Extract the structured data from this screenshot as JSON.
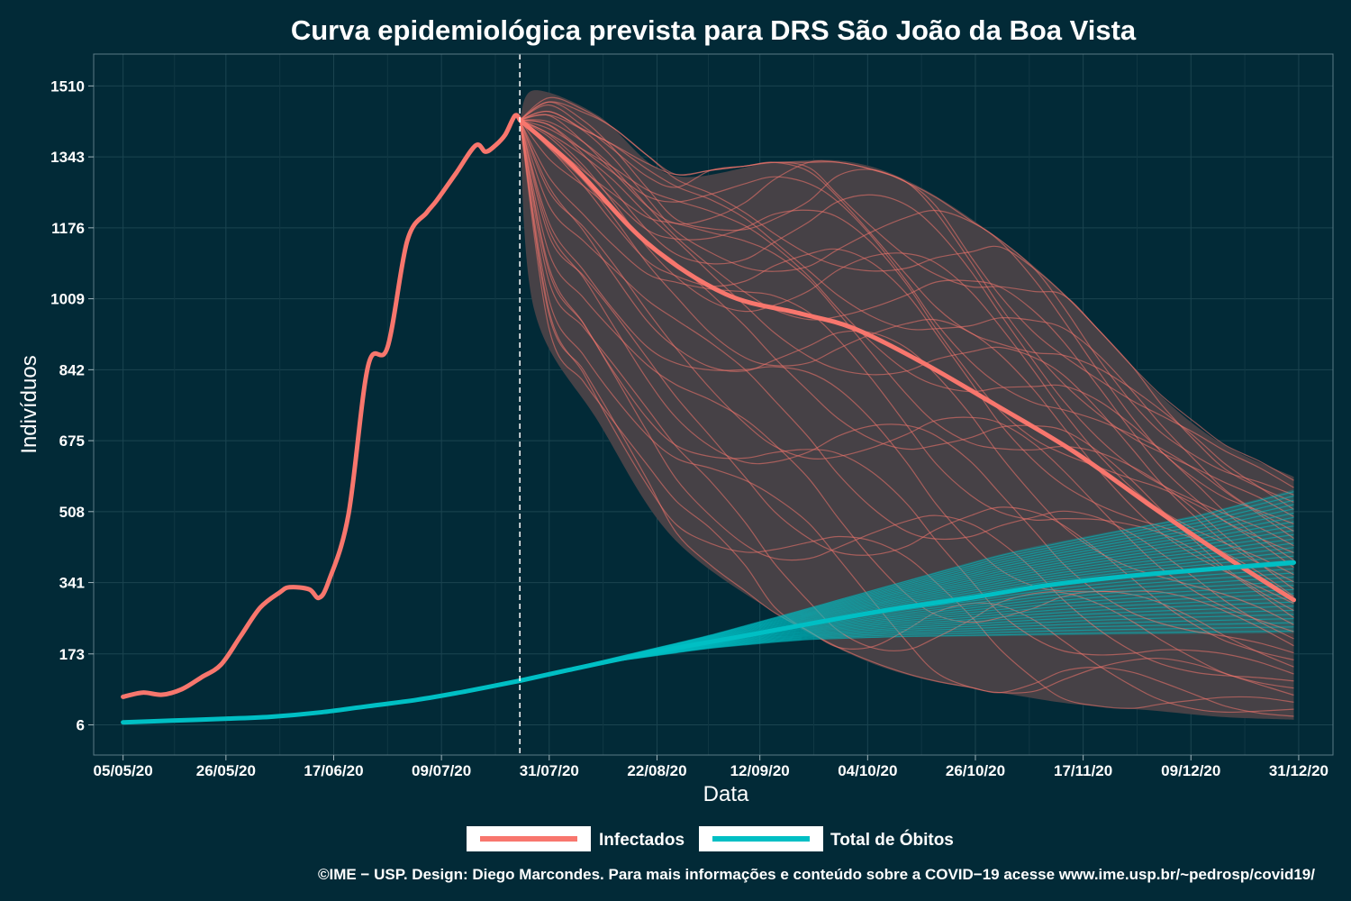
{
  "chart_data": {
    "type": "line",
    "title": "Curva epidemiológica prevista para DRS São João da Boa Vista",
    "xlabel": "Data",
    "ylabel": "Indivíduos",
    "x_ticks": [
      "05/05/20",
      "26/05/20",
      "17/06/20",
      "09/07/20",
      "31/07/20",
      "22/08/20",
      "12/09/20",
      "04/10/20",
      "26/10/20",
      "17/11/20",
      "09/12/20",
      "31/12/20"
    ],
    "y_ticks": [
      "6",
      "173",
      "341",
      "508",
      "675",
      "842",
      "1009",
      "1176",
      "1343",
      "1510"
    ],
    "xlim": [
      "2020-04-29",
      "2021-01-07"
    ],
    "ylim": [
      -65,
      1585
    ],
    "forecast_start": "2020-07-25",
    "legend": {
      "position": "bottom",
      "items": [
        "Infectados",
        "Total de Óbitos"
      ]
    },
    "colors": {
      "infectados": "#f8766d",
      "obitos": "#00bfc4",
      "band": "#464146",
      "background": "#022a37"
    },
    "series": [
      {
        "name": "Infectados",
        "x": [
          "2020-05-05",
          "2020-05-09",
          "2020-05-13",
          "2020-05-17",
          "2020-05-21",
          "2020-05-25",
          "2020-05-29",
          "2020-06-02",
          "2020-06-06",
          "2020-06-08",
          "2020-06-12",
          "2020-06-14",
          "2020-06-16",
          "2020-06-20",
          "2020-06-24",
          "2020-06-28",
          "2020-07-02",
          "2020-07-06",
          "2020-07-08",
          "2020-07-12",
          "2020-07-16",
          "2020-07-18",
          "2020-07-20",
          "2020-07-22",
          "2020-07-24",
          "2020-07-25"
        ],
        "y": [
          72,
          82,
          77,
          90,
          118,
          148,
          215,
          282,
          318,
          330,
          325,
          305,
          345,
          500,
          850,
          895,
          1145,
          1212,
          1240,
          1305,
          1370,
          1355,
          1370,
          1395,
          1440,
          1430
        ]
      },
      {
        "name": "Total de Óbitos",
        "x": [
          "2020-05-05",
          "2020-05-15",
          "2020-05-25",
          "2020-06-04",
          "2020-06-14",
          "2020-06-24",
          "2020-07-04",
          "2020-07-14",
          "2020-07-25"
        ],
        "y": [
          12,
          16,
          20,
          25,
          35,
          50,
          65,
          85,
          110
        ]
      },
      {
        "name": "Infectados (previsão)",
        "x": [
          "2020-07-25",
          "2020-08-05",
          "2020-08-20",
          "2020-09-05",
          "2020-09-20",
          "2020-10-01",
          "2020-10-15",
          "2020-10-30",
          "2020-11-15",
          "2020-12-01",
          "2020-12-15",
          "2020-12-30"
        ],
        "y": [
          1430,
          1320,
          1140,
          1020,
          975,
          940,
          860,
          760,
          650,
          520,
          410,
          300
        ]
      },
      {
        "name": "Total de Óbitos (previsão)",
        "x": [
          "2020-07-25",
          "2020-08-10",
          "2020-08-25",
          "2020-09-10",
          "2020-09-25",
          "2020-10-10",
          "2020-10-25",
          "2020-11-10",
          "2020-11-25",
          "2020-12-10",
          "2020-12-30"
        ],
        "y": [
          110,
          150,
          185,
          218,
          250,
          280,
          305,
          335,
          355,
          370,
          388
        ]
      }
    ],
    "band_infectados": {
      "x": [
        "2020-07-25",
        "2020-07-28",
        "2020-08-10",
        "2020-08-25",
        "2020-09-15",
        "2020-10-01",
        "2020-10-15",
        "2020-11-01",
        "2020-11-15",
        "2020-12-01",
        "2020-12-15",
        "2020-12-30"
      ],
      "upper": [
        1430,
        1500,
        1440,
        1300,
        1330,
        1330,
        1270,
        1140,
        1000,
        800,
        670,
        590
      ],
      "lower": [
        1430,
        980,
        720,
        450,
        270,
        170,
        115,
        80,
        55,
        40,
        25,
        18
      ]
    },
    "band_obitos": {
      "x": [
        "2020-07-25",
        "2020-08-10",
        "2020-09-01",
        "2020-09-20",
        "2020-10-10",
        "2020-11-01",
        "2020-11-20",
        "2020-12-10",
        "2020-12-30"
      ],
      "upper": [
        110,
        155,
        215,
        275,
        340,
        410,
        455,
        500,
        560
      ],
      "lower": [
        110,
        150,
        185,
        205,
        212,
        215,
        218,
        220,
        222
      ]
    },
    "caption": "©IME − USP. Design: Diego Marcondes. Para mais informações e conteúdo sobre a COVID−19 acesse www.ime.usp.br/~pedrosp/covid19/"
  }
}
